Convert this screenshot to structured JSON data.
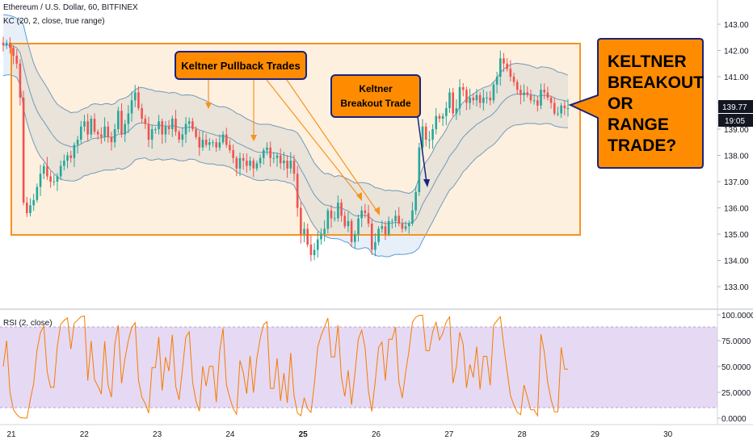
{
  "header": {
    "title": "Ethereum / U.S. Dollar, 60, BITFINEX",
    "indicator": "KC (20, 2, close, true range)"
  },
  "rsi_panel": {
    "label": "RSI (2, close)"
  },
  "price_axis": {
    "ticks": [
      "143.00",
      "142.00",
      "141.00",
      "140.00",
      "139.00",
      "138.00",
      "137.00",
      "136.00",
      "135.00",
      "134.00",
      "133.00"
    ],
    "last_price": "139.77",
    "countdown": "19:05"
  },
  "rsi_axis": {
    "ticks": [
      "100.0000",
      "75.0000",
      "50.0000",
      "25.0000",
      "0.0000"
    ]
  },
  "time_axis": {
    "ticks": [
      "21",
      "22",
      "23",
      "24",
      "25",
      "26",
      "27",
      "28",
      "29",
      "30"
    ]
  },
  "annotations": {
    "pullback": "Keltner Pullback Trades",
    "breakout_line1": "Keltner",
    "breakout_line2": "Breakout Trade",
    "question_line1": "KELTNER",
    "question_line2": "BREAKOUT",
    "question_line3": "OR",
    "question_line4": "RANGE",
    "question_line5": "TRADE?"
  },
  "colors": {
    "bull": "#26a69a",
    "bear": "#ef5350",
    "keltner_band": "#5b9bd5",
    "range_box": "#f7931e",
    "callout_fill": "#ff8c00",
    "rsi": "#f57c00",
    "rsi_bg": "#e6d9f3"
  },
  "chart_data": {
    "type": "candlestick",
    "symbol": "Ethereum / U.S. Dollar",
    "interval": "60",
    "exchange": "BITFINEX",
    "ylim": [
      132.6,
      143.4
    ],
    "close_series": [
      142.2,
      142.3,
      142.1,
      141.8,
      141.5,
      140.2,
      136.2,
      135.8,
      136.1,
      136.3,
      136.8,
      137.3,
      137.6,
      137.2,
      137.0,
      137.0,
      137.2,
      137.6,
      137.8,
      138.0,
      137.9,
      138.4,
      138.6,
      139.1,
      139.3,
      138.8,
      139.4,
      138.9,
      138.8,
      138.7,
      139.1,
      138.7,
      138.5,
      139.0,
      139.7,
      138.8,
      139.2,
      139.6,
      140.1,
      140.4,
      139.8,
      139.4,
      139.2,
      138.6,
      139.0,
      139.0,
      139.3,
      138.8,
      139.1,
      139.0,
      139.4,
      138.9,
      138.6,
      138.8,
      139.2,
      139.3,
      139.0,
      138.7,
      138.3,
      138.6,
      138.4,
      138.5,
      138.5,
      138.3,
      138.5,
      138.8,
      138.4,
      138.2,
      137.9,
      137.5,
      137.9,
      137.8,
      137.6,
      137.8,
      137.5,
      137.7,
      137.9,
      138.2,
      138.3,
      137.9,
      137.9,
      138.0,
      137.7,
      137.8,
      137.5,
      137.8,
      137.3,
      136.0,
      135.0,
      135.2,
      134.6,
      134.2,
      134.4,
      134.8,
      135.0,
      135.2,
      135.9,
      135.6,
      135.6,
      136.2,
      135.7,
      135.3,
      135.5,
      134.7,
      135.0,
      135.6,
      135.9,
      135.8,
      135.4,
      134.4,
      134.7,
      135.2,
      135.3,
      135.0,
      135.5,
      135.5,
      135.7,
      135.4,
      135.2,
      135.3,
      135.4,
      135.9,
      136.6,
      138.3,
      139.1,
      138.6,
      138.6,
      139.0,
      139.5,
      139.4,
      139.5,
      139.8,
      140.4,
      139.6,
      139.8,
      140.6,
      140.5,
      140.0,
      140.2,
      140.1,
      140.3,
      140.0,
      140.2,
      140.2,
      140.1,
      140.7,
      141.0,
      141.7,
      141.5,
      141.3,
      141.0,
      140.8,
      140.5,
      140.3,
      140.4,
      140.3,
      140.1,
      140.1,
      139.9,
      140.5,
      140.4,
      140.2,
      140.0,
      139.6,
      139.6,
      139.9,
      139.8,
      139.8
    ],
    "rsi_ylim": [
      0,
      100
    ],
    "rsi_bands": [
      10,
      90
    ]
  }
}
